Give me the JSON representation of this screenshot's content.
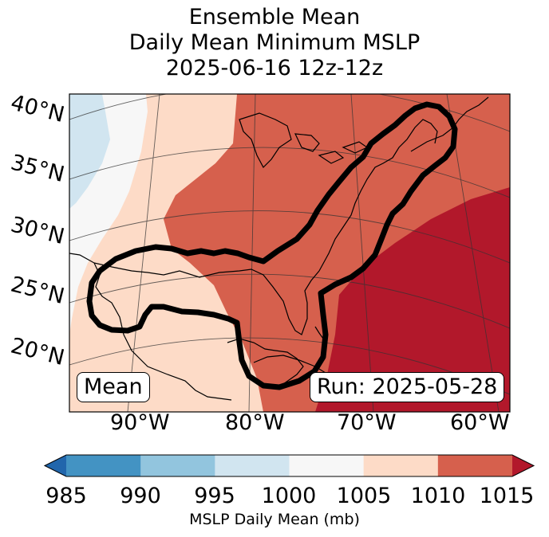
{
  "title": {
    "line1": "Ensemble Mean",
    "line2": "Daily Mean Minimum MSLP",
    "line3": "2025-06-16 12z-12z"
  },
  "map": {
    "lat_labels": [
      "40°N",
      "35°N",
      "30°N",
      "25°N",
      "20°N"
    ],
    "lon_labels": [
      "90°W",
      "80°W",
      "70°W",
      "60°W"
    ],
    "mean_badge": "Mean",
    "run_badge": "Run: 2025-05-28"
  },
  "colorbar": {
    "ticks": [
      "985",
      "990",
      "995",
      "1000",
      "1005",
      "1010",
      "1015"
    ],
    "label": "MSLP Daily Mean (mb)",
    "colors": {
      "below_985": "#2166ac",
      "985_990": "#4393c3",
      "990_995": "#92c5de",
      "995_1000": "#d1e5f0",
      "1000_1005": "#f7f7f7",
      "1005_1010": "#fddbc7",
      "1010_1015": "#d6604d",
      "above_1015": "#b2182b"
    }
  }
}
